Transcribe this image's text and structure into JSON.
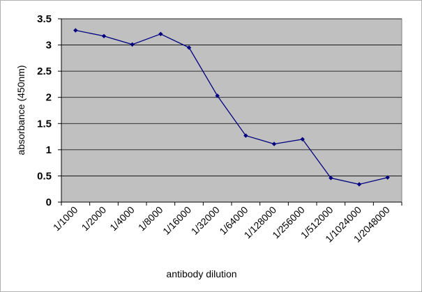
{
  "chart_data": {
    "type": "line",
    "categories": [
      "1/1000",
      "1/2000",
      "1/4000",
      "1/8000",
      "1/16000",
      "1/32000",
      "1/64000",
      "1/128000",
      "1/256000",
      "1/512000",
      "1/1024000",
      "1/2048000"
    ],
    "series": [
      {
        "values": [
          3.28,
          3.17,
          3.01,
          3.21,
          2.95,
          2.03,
          1.27,
          1.11,
          1.2,
          0.46,
          0.34,
          0.47
        ]
      }
    ],
    "xlabel": "antibody dilution",
    "ylabel": "absorbance (450nm)",
    "ylim": [
      0,
      3.5
    ],
    "yticks": [
      "0",
      "0.5",
      "1",
      "1.5",
      "2",
      "2.5",
      "3",
      "3.5"
    ],
    "grid": true,
    "legend": "none",
    "colors": {
      "plot_area": "#c0c0c0",
      "line": "#000080",
      "grid": "#000000"
    }
  }
}
